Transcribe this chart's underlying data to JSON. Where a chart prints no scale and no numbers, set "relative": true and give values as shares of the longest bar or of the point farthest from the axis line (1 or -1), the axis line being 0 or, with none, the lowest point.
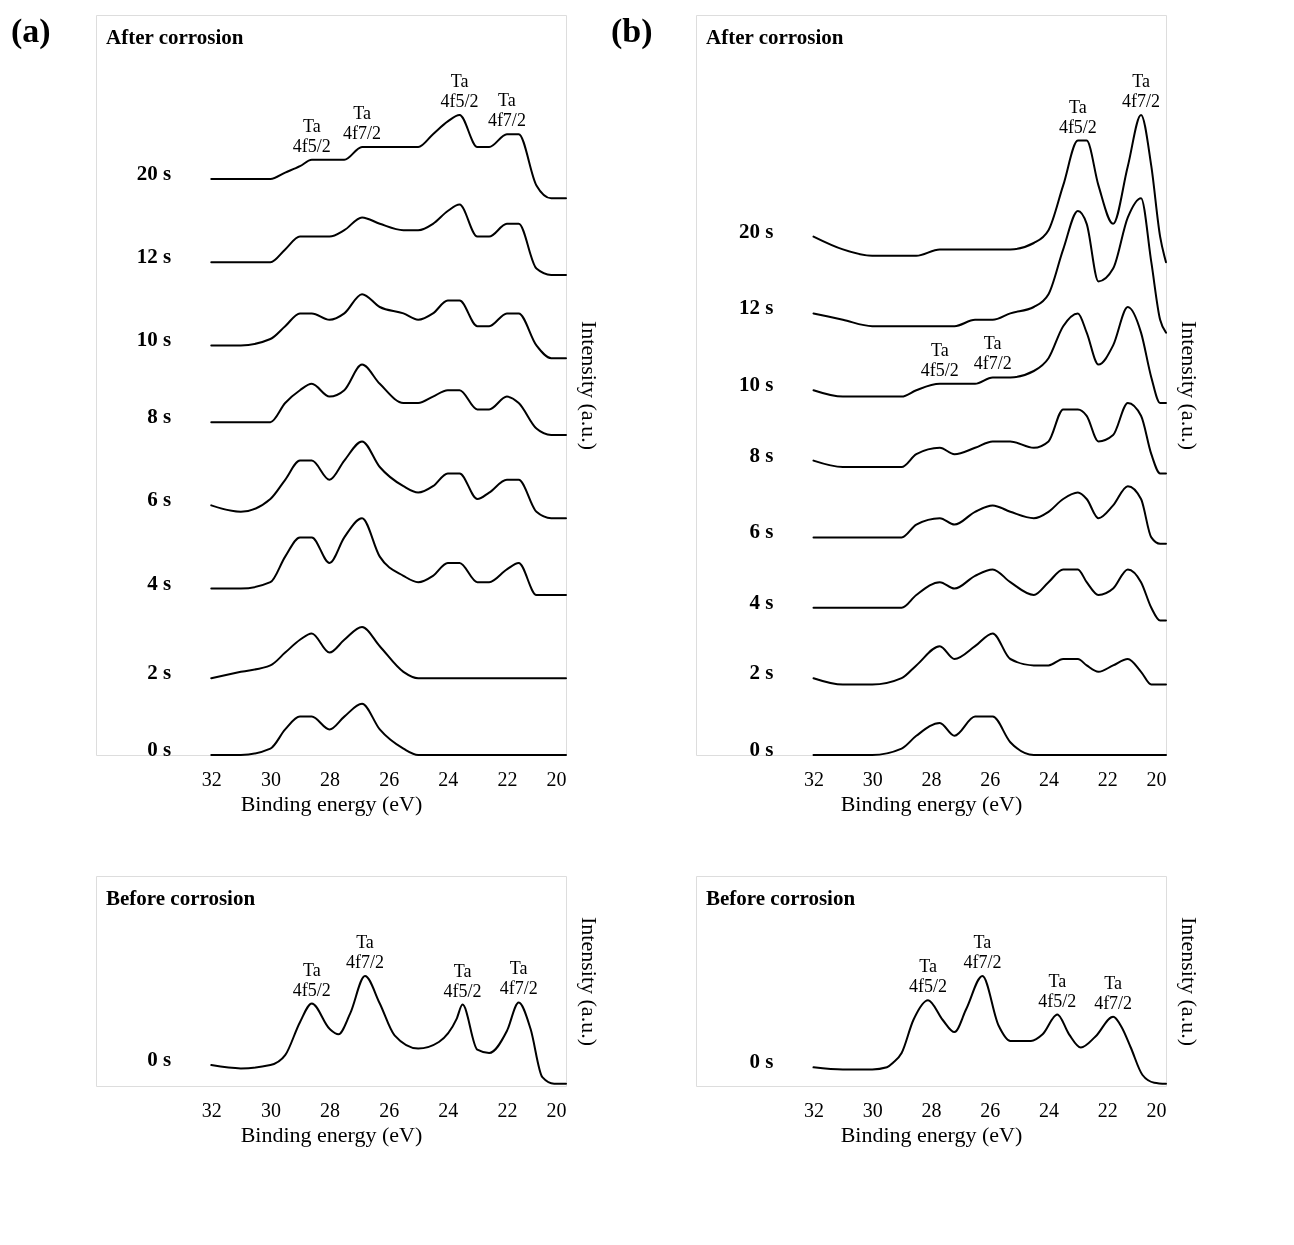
{
  "chart_data": [
    {
      "type": "line",
      "title": "After corrosion",
      "xlabel": "Binding energy (eV)",
      "ylabel": "Intensity (a.u.)",
      "relative": true,
      "tick_labels": "x",
      "legend": false,
      "xlim": [
        35.9,
        20
      ],
      "xticks": [
        32,
        30,
        28,
        26,
        24,
        22,
        20
      ],
      "x": [
        32,
        31,
        30,
        29.5,
        29,
        28.6,
        28,
        27.5,
        26.9,
        26.3,
        25.5,
        25,
        24.5,
        24,
        23.6,
        23,
        22.6,
        22,
        21.6,
        21,
        20.5,
        20
      ],
      "series": [
        {
          "name": "20 s",
          "color": "#000000",
          "values": [
            0.9,
            0.9,
            0.9,
            0.91,
            0.92,
            0.93,
            0.93,
            0.93,
            0.95,
            0.95,
            0.95,
            0.95,
            0.97,
            0.99,
            1.0,
            0.95,
            0.95,
            0.97,
            0.97,
            0.89,
            0.87,
            0.87
          ]
        },
        {
          "name": "12 s",
          "color": "#000000",
          "values": [
            0.77,
            0.77,
            0.77,
            0.79,
            0.81,
            0.81,
            0.81,
            0.82,
            0.84,
            0.83,
            0.82,
            0.82,
            0.83,
            0.85,
            0.86,
            0.81,
            0.81,
            0.83,
            0.83,
            0.76,
            0.75,
            0.75
          ]
        },
        {
          "name": "10 s",
          "color": "#000000",
          "values": [
            0.64,
            0.64,
            0.65,
            0.67,
            0.69,
            0.69,
            0.68,
            0.69,
            0.72,
            0.7,
            0.69,
            0.68,
            0.69,
            0.71,
            0.71,
            0.67,
            0.67,
            0.69,
            0.69,
            0.64,
            0.62,
            0.62
          ]
        },
        {
          "name": "8 s",
          "color": "#000000",
          "values": [
            0.52,
            0.52,
            0.52,
            0.55,
            0.57,
            0.58,
            0.56,
            0.57,
            0.61,
            0.58,
            0.55,
            0.55,
            0.56,
            0.57,
            0.57,
            0.54,
            0.54,
            0.56,
            0.55,
            0.51,
            0.5,
            0.5
          ]
        },
        {
          "name": "6 s",
          "color": "#000000",
          "values": [
            0.39,
            0.38,
            0.4,
            0.43,
            0.46,
            0.46,
            0.43,
            0.46,
            0.49,
            0.45,
            0.42,
            0.41,
            0.42,
            0.44,
            0.44,
            0.4,
            0.41,
            0.43,
            0.43,
            0.38,
            0.37,
            0.37
          ]
        },
        {
          "name": "4 s",
          "color": "#000000",
          "values": [
            0.26,
            0.26,
            0.27,
            0.31,
            0.34,
            0.34,
            0.3,
            0.34,
            0.37,
            0.31,
            0.28,
            0.27,
            0.28,
            0.3,
            0.3,
            0.27,
            0.27,
            0.29,
            0.3,
            0.25,
            0.25,
            0.25
          ]
        },
        {
          "name": "2 s",
          "color": "#000000",
          "values": [
            0.12,
            0.13,
            0.14,
            0.16,
            0.18,
            0.19,
            0.16,
            0.18,
            0.2,
            0.17,
            0.13,
            0.12,
            0.12,
            0.12,
            0.12,
            0.12,
            0.12,
            0.12,
            0.12,
            0.12,
            0.12,
            0.12
          ]
        },
        {
          "name": "0 s",
          "color": "#000000",
          "values": [
            0.0,
            0.0,
            0.01,
            0.04,
            0.06,
            0.06,
            0.04,
            0.06,
            0.08,
            0.04,
            0.01,
            0.0,
            0.0,
            0.0,
            0.0,
            0.0,
            0.0,
            0.0,
            0.0,
            0.0,
            0.0,
            0.0
          ]
        }
      ],
      "annotations": [
        "(a)",
        {
          "text": "Ta 4f5/2",
          "x": 28.6,
          "y": 0.93
        },
        {
          "text": "Ta 4f7/2",
          "x": 26.9,
          "y": 0.95
        },
        {
          "text": "Ta 4f5/2",
          "x": 23.6,
          "y": 1.0
        },
        {
          "text": "Ta 4f7/2",
          "x": 22,
          "y": 0.97
        }
      ]
    },
    {
      "type": "line",
      "title": "After corrosion",
      "xlabel": "Binding energy (eV)",
      "ylabel": "Intensity (a.u.)",
      "relative": true,
      "tick_labels": "x",
      "legend": false,
      "xlim": [
        36.0,
        20
      ],
      "xticks": [
        32,
        30,
        28,
        26,
        24,
        22,
        20
      ],
      "x": [
        32,
        31,
        30,
        29,
        28.5,
        27.7,
        27.2,
        26.5,
        25.9,
        25.3,
        24.5,
        24,
        23.5,
        23.0,
        22.7,
        22.3,
        21.8,
        21.3,
        20.85,
        20.5,
        20.2,
        20
      ],
      "series": [
        {
          "name": "20 s",
          "color": "#000000",
          "values": [
            0.81,
            0.79,
            0.78,
            0.78,
            0.78,
            0.79,
            0.79,
            0.79,
            0.79,
            0.79,
            0.8,
            0.82,
            0.89,
            0.96,
            0.96,
            0.89,
            0.83,
            0.92,
            1.0,
            0.92,
            0.81,
            0.77
          ]
        },
        {
          "name": "12 s",
          "color": "#000000",
          "values": [
            0.69,
            0.68,
            0.67,
            0.67,
            0.67,
            0.67,
            0.67,
            0.68,
            0.68,
            0.69,
            0.7,
            0.72,
            0.79,
            0.85,
            0.83,
            0.74,
            0.76,
            0.84,
            0.87,
            0.77,
            0.68,
            0.66
          ]
        },
        {
          "name": "10 s",
          "color": "#000000",
          "values": [
            0.57,
            0.56,
            0.56,
            0.56,
            0.57,
            0.58,
            0.58,
            0.58,
            0.59,
            0.59,
            0.6,
            0.62,
            0.67,
            0.69,
            0.66,
            0.61,
            0.64,
            0.7,
            0.66,
            0.59,
            0.55,
            0.55
          ]
        },
        {
          "name": "8 s",
          "color": "#000000",
          "values": [
            0.46,
            0.45,
            0.45,
            0.45,
            0.47,
            0.48,
            0.47,
            0.48,
            0.49,
            0.49,
            0.48,
            0.49,
            0.54,
            0.54,
            0.53,
            0.49,
            0.5,
            0.55,
            0.53,
            0.47,
            0.44,
            0.44
          ]
        },
        {
          "name": "6 s",
          "color": "#000000",
          "values": [
            0.34,
            0.34,
            0.34,
            0.34,
            0.36,
            0.37,
            0.36,
            0.38,
            0.39,
            0.38,
            0.37,
            0.38,
            0.4,
            0.41,
            0.4,
            0.37,
            0.39,
            0.42,
            0.4,
            0.34,
            0.33,
            0.33
          ]
        },
        {
          "name": "4 s",
          "color": "#000000",
          "values": [
            0.23,
            0.23,
            0.23,
            0.23,
            0.25,
            0.27,
            0.26,
            0.28,
            0.29,
            0.27,
            0.25,
            0.27,
            0.29,
            0.29,
            0.27,
            0.25,
            0.26,
            0.29,
            0.27,
            0.23,
            0.21,
            0.21
          ]
        },
        {
          "name": "2 s",
          "color": "#000000",
          "values": [
            0.12,
            0.11,
            0.11,
            0.12,
            0.14,
            0.17,
            0.15,
            0.17,
            0.19,
            0.15,
            0.14,
            0.14,
            0.15,
            0.15,
            0.14,
            0.13,
            0.14,
            0.15,
            0.13,
            0.11,
            0.11,
            0.11
          ]
        },
        {
          "name": "0 s",
          "color": "#000000",
          "values": [
            0.0,
            0.0,
            0.0,
            0.01,
            0.03,
            0.05,
            0.03,
            0.06,
            0.06,
            0.02,
            0.0,
            0.0,
            0.0,
            0.0,
            0.0,
            0.0,
            0.0,
            0.0,
            0.0,
            0.0,
            0.0,
            0.0
          ]
        }
      ],
      "annotations": [
        "(b)",
        {
          "text": "Ta 4f5/2",
          "x": 23.0,
          "y": 0.96
        },
        {
          "text": "Ta 4f7/2",
          "x": 20.85,
          "y": 1.0
        },
        {
          "text": "Ta 4f5/2",
          "x": 27.7,
          "y": 0.58
        },
        {
          "text": "Ta 4f7/2",
          "x": 25.9,
          "y": 0.59
        }
      ]
    },
    {
      "type": "line",
      "title": "Before corrosion",
      "xlabel": "Binding energy (eV)",
      "ylabel": "Intensity (a.u.)",
      "relative": true,
      "tick_labels": "x",
      "legend": false,
      "xlim": [
        35.9,
        20
      ],
      "xticks": [
        32,
        30,
        28,
        26,
        24,
        22,
        20
      ],
      "x": [
        32,
        31,
        30,
        29.5,
        29,
        28.6,
        28,
        27.7,
        27.3,
        26.8,
        26.3,
        25.8,
        25,
        24.3,
        23.7,
        23.5,
        23,
        22.6,
        22,
        21.6,
        21.2,
        20.8,
        20.4,
        20
      ],
      "series": [
        {
          "name": "0 s",
          "color": "#000000",
          "values": [
            0.19,
            0.16,
            0.19,
            0.28,
            0.58,
            0.75,
            0.52,
            0.47,
            0.66,
            1.0,
            0.75,
            0.46,
            0.34,
            0.4,
            0.61,
            0.74,
            0.33,
            0.3,
            0.5,
            0.76,
            0.52,
            0.08,
            0.02,
            0.02
          ]
        }
      ],
      "annotations": [
        {
          "text": "Ta 4f5/2",
          "x": 28.6,
          "y": 0.75
        },
        {
          "text": "Ta 4f7/2",
          "x": 26.8,
          "y": 1.0
        },
        {
          "text": "Ta 4f5/2",
          "x": 23.5,
          "y": 0.74
        },
        {
          "text": "Ta 4f7/2",
          "x": 21.6,
          "y": 0.76
        }
      ]
    },
    {
      "type": "line",
      "title": "Before corrosion",
      "xlabel": "Binding energy (eV)",
      "ylabel": "Intensity (a.u.)",
      "relative": true,
      "tick_labels": "x",
      "legend": false,
      "xlim": [
        36.0,
        20
      ],
      "xticks": [
        32,
        30,
        28,
        26,
        24,
        22,
        20
      ],
      "x": [
        32,
        31,
        30,
        29.5,
        29.3,
        29,
        28.6,
        28.1,
        27.6,
        27.2,
        26.8,
        26.25,
        25.7,
        25.3,
        24.6,
        24.2,
        23.7,
        23.3,
        22.9,
        22.4,
        21.8,
        21.5,
        21.2,
        20.8,
        20.4,
        20
      ],
      "series": [
        {
          "name": "0 s",
          "color": "#000000",
          "values": [
            0.17,
            0.15,
            0.15,
            0.17,
            0.21,
            0.3,
            0.6,
            0.78,
            0.6,
            0.49,
            0.7,
            1.0,
            0.55,
            0.41,
            0.41,
            0.47,
            0.65,
            0.47,
            0.35,
            0.45,
            0.63,
            0.53,
            0.35,
            0.1,
            0.03,
            0.02
          ]
        }
      ],
      "annotations": [
        {
          "text": "Ta 4f5/2",
          "x": 28.1,
          "y": 0.78
        },
        {
          "text": "Ta 4f7/2",
          "x": 26.25,
          "y": 1.0
        },
        {
          "text": "Ta 4f5/2",
          "x": 23.7,
          "y": 0.65
        },
        {
          "text": "Ta 4f7/2",
          "x": 21.8,
          "y": 0.63
        }
      ]
    }
  ]
}
